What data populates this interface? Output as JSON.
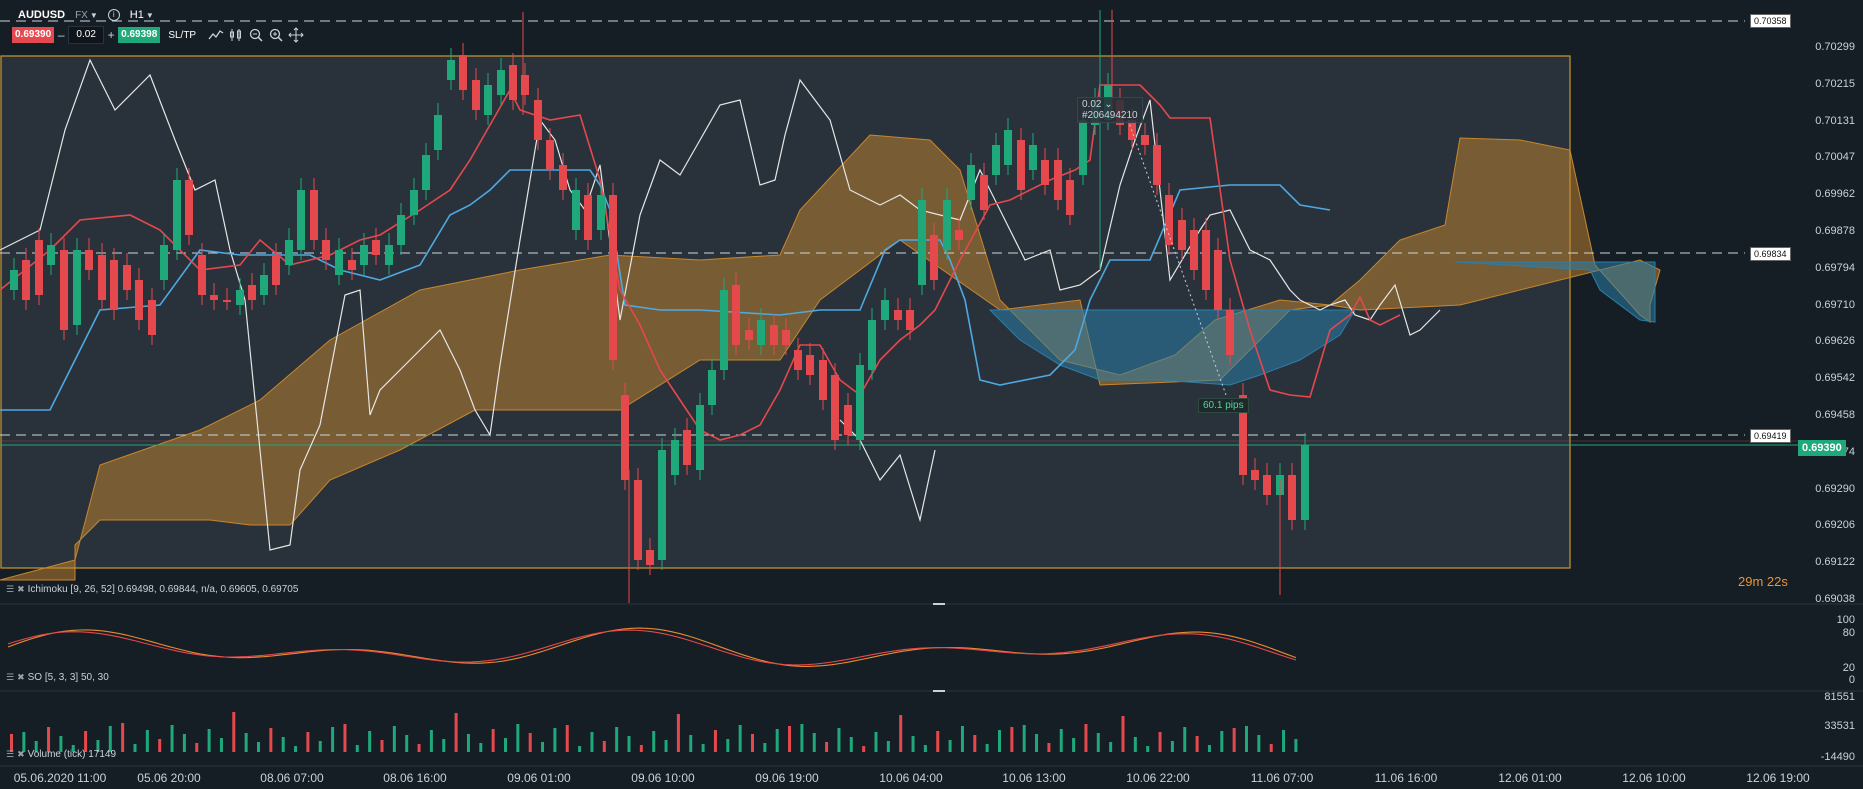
{
  "header": {
    "symbol": "AUDUSD",
    "market": "FX",
    "timeframe": "H1",
    "sell_price": "0.69390",
    "buy_price": "0.69398",
    "quantity": "0.02",
    "minus": "–",
    "plus": "+",
    "sltp_label": "SL/TP"
  },
  "price_axis": [
    "0.70299",
    "0.70215",
    "0.70131",
    "0.70047",
    "0.69962",
    "0.69878",
    "0.69794",
    "0.69710",
    "0.69626",
    "0.69542",
    "0.69458",
    "0.69374",
    "0.69290",
    "0.69206",
    "0.69122",
    "0.69038"
  ],
  "price_tags": {
    "top": "0.70358",
    "mid": "0.69834",
    "low": "0.69419",
    "current": "0.69390"
  },
  "timer": "29m 22s",
  "order": {
    "qty": "0.02",
    "id": "#206494210"
  },
  "pips": "60.1 pips",
  "indicators": {
    "ichimoku": "Ichimoku [9, 26, 52] 0.69498, 0.69844, n/a, 0.69605, 0.69705",
    "so": "SO [5, 3, 3] 50, 30",
    "volume": "Volume (tick) 17149"
  },
  "so_axis": [
    "100",
    "80",
    "20",
    "0"
  ],
  "volume_axis": [
    "81551",
    "33531",
    "-14490"
  ],
  "time_axis": [
    "05.06.2020 11:00",
    "05.06 20:00",
    "08.06 07:00",
    "08.06 16:00",
    "09.06 01:00",
    "09.06 10:00",
    "09.06 19:00",
    "10.06 04:00",
    "10.06 13:00",
    "10.06 22:00",
    "11.06 07:00",
    "11.06 16:00",
    "12.06 01:00",
    "12.06 10:00",
    "12.06 19:00"
  ],
  "colors": {
    "bull": "#1fa87a",
    "bear": "#e5484d",
    "cloud_up": "#c8862e",
    "cloud_down": "#2c7ea8",
    "tenkan": "#e5484d",
    "kijun": "#4fa8e0",
    "chikou": "#e6e6e6",
    "box": "#c99a2e"
  }
}
